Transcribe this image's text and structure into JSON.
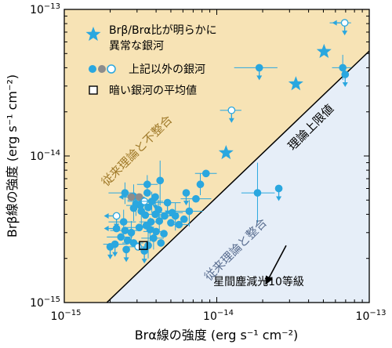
{
  "chart_data": {
    "type": "scatter",
    "xlabel": "Brα線の強度 (erg s⁻¹ cm⁻²)",
    "ylabel": "Brβ線の強度 (erg s⁻¹ cm⁻²)",
    "xscale": "log",
    "yscale": "log",
    "xlim": [
      1e-15,
      1e-13
    ],
    "ylim": [
      1e-15,
      1e-13
    ],
    "x_ticks": [
      {
        "value": 1e-15,
        "base": "10",
        "exp": "−15"
      },
      {
        "value": 1e-14,
        "base": "10",
        "exp": "−14"
      },
      {
        "value": 1e-13,
        "base": "10",
        "exp": "−13"
      }
    ],
    "y_ticks": [
      {
        "value": 1e-15,
        "base": "10",
        "exp": "−15"
      },
      {
        "value": 1e-14,
        "base": "10",
        "exp": "−14"
      },
      {
        "value": 1e-13,
        "base": "10",
        "exp": "−13"
      }
    ],
    "colors": {
      "marker": "#2aa7df",
      "grey": "#8c8c8c",
      "region_upper": "#f7e3b5",
      "region_lower": "#e6eef8",
      "label_upper": "#a07a2a",
      "label_lower": "#5a6e90"
    },
    "boundary_line": {
      "points": [
        [
          1.9e-15,
          1e-15
        ],
        [
          1e-13,
          5.2e-14
        ]
      ],
      "label": "理論上限値"
    },
    "regions": {
      "upper_label": "従来理論と不整合",
      "lower_label": "従来理論と整合"
    },
    "legend": [
      {
        "symbol": "star",
        "label_lines": [
          "Brβ/Brα比が明らかに",
          "異常な銀河"
        ]
      },
      {
        "symbol": "circles",
        "label_lines": [
          "上記以外の銀河"
        ]
      },
      {
        "symbol": "square",
        "label_lines": [
          "暗い銀河の平均値"
        ]
      }
    ],
    "annotation": {
      "text": "星間塵減光10等級",
      "arrow_from": [
        2.85e-14,
        2.45e-15
      ],
      "arrow_to": [
        2.08e-14,
        1.32e-15
      ]
    },
    "stars": [
      {
        "x": 1.15e-14,
        "y": 1.05e-14
      },
      {
        "x": 3.3e-14,
        "y": 3.1e-14
      },
      {
        "x": 5.05e-14,
        "y": 5.15e-14
      }
    ],
    "points": [
      {
        "x": 6.9e-14,
        "y": 8.1e-14,
        "style": "open",
        "xerr": [
          5.5e-14,
          7.6e-14
        ],
        "yerr": [],
        "xlim_left": true,
        "ylim_down": true
      },
      {
        "x": 6.7e-14,
        "y": 4e-14,
        "style": "filled",
        "xerr": [
          5.7e-14,
          7.6e-14
        ],
        "yerr": [
          3.3e-14,
          4.9e-14
        ]
      },
      {
        "x": 6.95e-14,
        "y": 3.6e-14,
        "style": "filled",
        "xerr": [],
        "yerr": [],
        "ylim_down": true
      },
      {
        "x": 1.9e-14,
        "y": 4e-14,
        "style": "filled",
        "xerr": [
          1.3e-14,
          2.5e-14
        ],
        "yerr": [],
        "ylim_down": true
      },
      {
        "x": 1.25e-14,
        "y": 2.05e-14,
        "style": "open",
        "xerr": [
          1.05e-14,
          1.45e-14
        ],
        "yerr": [],
        "ylim_down": true
      },
      {
        "x": 2.55e-14,
        "y": 6e-15,
        "style": "filled",
        "xerr": [],
        "yerr": [],
        "ylim_down": true
      },
      {
        "x": 1.85e-14,
        "y": 5.6e-15,
        "style": "filled",
        "xerr": [
          1.45e-14,
          2.4e-14
        ],
        "yerr": [
          3.5e-15,
          9e-15
        ]
      },
      {
        "x": 8.5e-15,
        "y": 7.6e-15,
        "style": "filled",
        "xerr": [
          7.2e-15,
          1e-14
        ],
        "yerr": []
      },
      {
        "x": 7.8e-15,
        "y": 6.4e-15,
        "style": "filled",
        "xerr": [],
        "yerr": [
          5.4e-15,
          7.6e-15
        ]
      },
      {
        "x": 7.3e-15,
        "y": 5.1e-15,
        "style": "filled",
        "xerr": [
          5.8e-15,
          9.2e-15
        ],
        "yerr": []
      },
      {
        "x": 6.6e-15,
        "y": 4.2e-15,
        "style": "filled",
        "xerr": [
          5.3e-15,
          8.1e-15
        ],
        "yerr": [
          3.3e-15,
          5e-15
        ]
      },
      {
        "x": 6.1e-15,
        "y": 3.7e-15,
        "style": "filled",
        "xerr": [],
        "yerr": []
      },
      {
        "x": 5.65e-15,
        "y": 3.4e-15,
        "style": "filled",
        "xerr": [
          4.8e-15,
          6.6e-15
        ],
        "yerr": []
      },
      {
        "x": 5.35e-15,
        "y": 3.9e-15,
        "style": "filled",
        "xerr": [],
        "yerr": [
          3.1e-15,
          4.8e-15
        ]
      },
      {
        "x": 5e-15,
        "y": 3.5e-15,
        "style": "filled",
        "xerr": [],
        "yerr": []
      },
      {
        "x": 4.75e-15,
        "y": 4.8e-15,
        "style": "filled",
        "xerr": [
          3.8e-15,
          5.8e-15
        ],
        "yerr": [],
        "ylim_down": true
      },
      {
        "x": 4.25e-15,
        "y": 6.8e-15,
        "style": "filled",
        "xerr": [],
        "yerr": [
          4.6e-15,
          9.3e-15
        ]
      },
      {
        "x": 3.5e-15,
        "y": 6.4e-15,
        "style": "filled",
        "xerr": [
          3e-15,
          4.1e-15
        ],
        "yerr": [
          5.5e-15,
          7.4e-15
        ]
      },
      {
        "x": 3.5e-15,
        "y": 5.6e-15,
        "style": "filled",
        "xerr": [],
        "yerr": []
      },
      {
        "x": 2.5e-15,
        "y": 5.6e-15,
        "style": "filled",
        "xerr": [
          1.95e-15,
          2.9e-15
        ],
        "yerr": [
          4.7e-15,
          6.6e-15
        ]
      },
      {
        "x": 2.85e-15,
        "y": 5.3e-15,
        "style": "filled",
        "xerr": [],
        "yerr": [
          4.2e-15,
          6.4e-15
        ]
      },
      {
        "x": 3.25e-15,
        "y": 5e-15,
        "style": "filled",
        "xerr": [
          2.6e-15,
          3.8e-15
        ],
        "yerr": []
      },
      {
        "x": 2.95e-15,
        "y": 4.7e-15,
        "style": "filled",
        "xerr": [],
        "yerr": [
          3.9e-15,
          5.5e-15
        ]
      },
      {
        "x": 3.15e-15,
        "y": 4.6e-15,
        "style": "filled",
        "xerr": [
          2.55e-15,
          3.75e-15
        ],
        "yerr": []
      },
      {
        "x": 2.85e-15,
        "y": 4.4e-15,
        "style": "filled",
        "xerr": [],
        "yerr": [
          3.6e-15,
          5.2e-15
        ]
      },
      {
        "x": 2.75e-15,
        "y": 5.25e-15,
        "style": "grey",
        "xerr": [],
        "yerr": [],
        "xlim_left": true
      },
      {
        "x": 3.1e-15,
        "y": 5.25e-15,
        "style": "grey",
        "xerr": [],
        "yerr": []
      },
      {
        "x": 3.35e-15,
        "y": 4.9e-15,
        "style": "open",
        "xerr": [
          2.6e-15,
          4e-15
        ],
        "yerr": []
      },
      {
        "x": 3.75e-15,
        "y": 4.9e-15,
        "style": "filled",
        "xerr": [
          3.05e-15,
          4.45e-15
        ],
        "yerr": [
          4.1e-15,
          5.7e-15
        ]
      },
      {
        "x": 4.15e-15,
        "y": 4.3e-15,
        "style": "filled",
        "xerr": [],
        "yerr": [
          3.6e-15,
          5e-15
        ]
      },
      {
        "x": 3.95e-15,
        "y": 4e-15,
        "style": "filled",
        "xerr": [
          3.3e-15,
          4.6e-15
        ],
        "yerr": []
      },
      {
        "x": 3.55e-15,
        "y": 4.45e-15,
        "style": "filled",
        "xerr": [],
        "yerr": []
      },
      {
        "x": 3.2e-15,
        "y": 4.2e-15,
        "style": "filled",
        "xerr": [],
        "yerr": [
          3.4e-15,
          5.1e-15
        ]
      },
      {
        "x": 3.4e-15,
        "y": 3.95e-15,
        "style": "filled",
        "xerr": [],
        "yerr": []
      },
      {
        "x": 4.55e-15,
        "y": 3.9e-15,
        "style": "filled",
        "xerr": [
          3.8e-15,
          5.3e-15
        ],
        "yerr": []
      },
      {
        "x": 4.2e-15,
        "y": 3.6e-15,
        "style": "filled",
        "xerr": [],
        "yerr": [
          3e-15,
          4.4e-15
        ]
      },
      {
        "x": 3.7e-15,
        "y": 3.55e-15,
        "style": "filled",
        "xerr": [
          3.1e-15,
          4.3e-15
        ],
        "yerr": []
      },
      {
        "x": 3.45e-15,
        "y": 3.35e-15,
        "style": "filled",
        "xerr": [],
        "yerr": []
      },
      {
        "x": 3.1e-15,
        "y": 3.25e-15,
        "style": "filled",
        "xerr": [
          2.55e-15,
          3.7e-15
        ],
        "yerr": []
      },
      {
        "x": 3.65e-15,
        "y": 3.15e-15,
        "style": "filled",
        "xerr": [],
        "yerr": [
          2.6e-15,
          3.8e-15
        ]
      },
      {
        "x": 4e-15,
        "y": 3.05e-15,
        "style": "filled",
        "xerr": [
          3.3e-15,
          4.7e-15
        ],
        "yerr": []
      },
      {
        "x": 4.5e-15,
        "y": 2.95e-15,
        "style": "filled",
        "xerr": [],
        "yerr": []
      },
      {
        "x": 3.85e-15,
        "y": 2.75e-15,
        "style": "filled",
        "xerr": [
          3.2e-15,
          4.5e-15
        ],
        "yerr": [
          2.3e-15,
          3.3e-15
        ]
      },
      {
        "x": 4.3e-15,
        "y": 2.55e-15,
        "style": "filled",
        "xerr": [],
        "yerr": []
      },
      {
        "x": 3.55e-15,
        "y": 2.45e-15,
        "style": "filled",
        "xerr": [],
        "yerr": [
          2e-15,
          3e-15
        ]
      },
      {
        "x": 2.2e-15,
        "y": 3.9e-15,
        "style": "open",
        "xerr": [],
        "yerr": [],
        "xlim_left": true,
        "ylim_down": true
      },
      {
        "x": 2.45e-15,
        "y": 3.55e-15,
        "style": "filled",
        "xerr": [
          1.95e-15,
          2.95e-15
        ],
        "yerr": [
          2.9e-15,
          4.3e-15
        ]
      },
      {
        "x": 2.2e-15,
        "y": 3.2e-15,
        "style": "filled",
        "xerr": [],
        "yerr": [],
        "xlim_left": true
      },
      {
        "x": 2.5e-15,
        "y": 3.1e-15,
        "style": "filled",
        "xerr": [
          2e-15,
          3e-15
        ],
        "yerr": []
      },
      {
        "x": 2.75e-15,
        "y": 3e-15,
        "style": "filled",
        "xerr": [],
        "yerr": [
          2.5e-15,
          3.6e-15
        ]
      },
      {
        "x": 2.35e-15,
        "y": 2.8e-15,
        "style": "filled",
        "xerr": [
          1.9e-15,
          2.8e-15
        ],
        "yerr": []
      },
      {
        "x": 2.6e-15,
        "y": 2.65e-15,
        "style": "filled",
        "xerr": [],
        "yerr": []
      },
      {
        "x": 2.85e-15,
        "y": 2.55e-15,
        "style": "filled",
        "xerr": [
          2.4e-15,
          3.3e-15
        ],
        "yerr": []
      },
      {
        "x": 2.15e-15,
        "y": 2.5e-15,
        "style": "filled",
        "xerr": [
          1.8e-15,
          2.6e-15
        ],
        "yerr": [],
        "ylim_down": true
      },
      {
        "x": 2e-15,
        "y": 2.4e-15,
        "style": "filled",
        "xerr": [],
        "yerr": [],
        "ylim_down": true
      },
      {
        "x": 2.55e-15,
        "y": 2.3e-15,
        "style": "filled",
        "xerr": [],
        "yerr": [],
        "ylim_down": true
      },
      {
        "x": 3.05e-15,
        "y": 2.4e-15,
        "style": "open",
        "xerr": [
          2.5e-15,
          3.6e-15
        ],
        "yerr": []
      },
      {
        "x": 3.35e-15,
        "y": 2.25e-15,
        "style": "filled",
        "xerr": [],
        "yerr": [],
        "ylim_down": true
      },
      {
        "x": 6.3e-15,
        "y": 5.6e-15,
        "style": "filled",
        "xerr": [],
        "yerr": [],
        "ylim_down": true
      },
      {
        "x": 5.1e-15,
        "y": 4.1e-15,
        "style": "filled",
        "xerr": [
          4.3e-15,
          6e-15
        ],
        "yerr": []
      },
      {
        "x": 3.95e-15,
        "y": 5.25e-15,
        "style": "filled",
        "xerr": [],
        "yerr": [],
        "ylim_down": true
      }
    ],
    "mean_square": {
      "x": 3.3e-15,
      "y": 2.45e-15
    },
    "legend_label_pos": "top-left"
  }
}
